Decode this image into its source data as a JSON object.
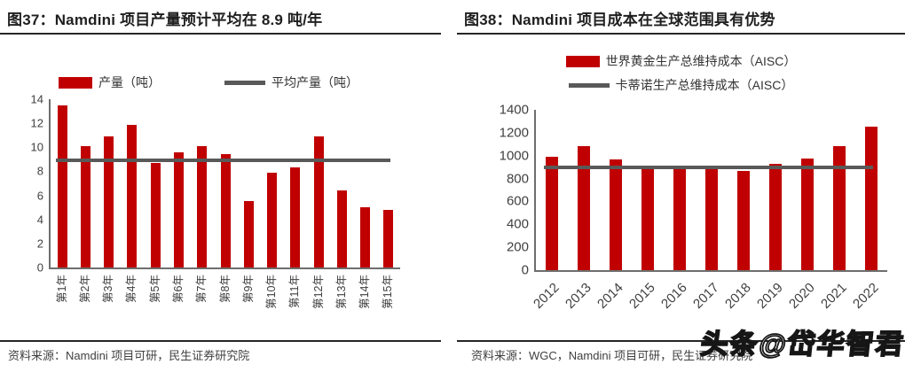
{
  "watermark": "头条@岱华智君",
  "colors": {
    "bar_red": "#c00000",
    "line_gray": "#595959",
    "rule_dark": "#262626",
    "axis_gray": "#6e6e6e",
    "text_gray": "#404040"
  },
  "figures": [
    {
      "title": "图37：Namdini 项目产量预计平均在 8.9 吨/年",
      "source": "资料来源：Namdini 项目可研，民生证券研究院"
    },
    {
      "title": "图38：Namdini 项目成本在全球范围具有优势",
      "source": "资料来源：WGC，Namdini 项目可研，民生证券研究院"
    }
  ],
  "chart_data": [
    {
      "type": "bar",
      "title": "图37：Namdini 项目产量预计平均在 8.9 吨/年",
      "categories": [
        "第1年",
        "第2年",
        "第3年",
        "第4年",
        "第5年",
        "第6年",
        "第7年",
        "第8年",
        "第9年",
        "第10年",
        "第11年",
        "第12年",
        "第13年",
        "第14年",
        "第15年"
      ],
      "series": [
        {
          "name": "产量（吨）",
          "type": "bar",
          "color": "#c00000",
          "values": [
            13.5,
            10.1,
            10.9,
            11.9,
            8.7,
            9.6,
            10.1,
            9.4,
            5.5,
            7.9,
            8.3,
            10.9,
            6.4,
            5.0,
            4.8
          ]
        },
        {
          "name": "平均产量（吨）",
          "type": "line",
          "color": "#595959",
          "value": 8.9
        }
      ],
      "xlabel": "",
      "ylabel": "",
      "ylim": [
        0,
        14
      ],
      "ytick_step": 2,
      "yticks": [
        0,
        2,
        4,
        6,
        8,
        10,
        12,
        14
      ],
      "grid": false,
      "legend_position": "top",
      "xlabel_rotation": 90
    },
    {
      "type": "bar",
      "title": "图38：Namdini 项目成本在全球范围具有优势",
      "categories": [
        "2012",
        "2013",
        "2014",
        "2015",
        "2016",
        "2017",
        "2018",
        "2019",
        "2020",
        "2021",
        "2022"
      ],
      "series": [
        {
          "name": "世界黄金生产总维持成本（AISC）",
          "type": "bar",
          "color": "#c00000",
          "values": [
            990,
            1080,
            965,
            880,
            880,
            880,
            865,
            930,
            975,
            1080,
            1255
          ]
        },
        {
          "name": "卡蒂诺生产总维持成本（AISC）",
          "type": "line",
          "color": "#595959",
          "value": 895
        }
      ],
      "xlabel": "",
      "ylabel": "",
      "ylim": [
        0,
        1400
      ],
      "ytick_step": 200,
      "yticks": [
        0,
        200,
        400,
        600,
        800,
        1000,
        1200,
        1400
      ],
      "grid": false,
      "legend_position": "top",
      "xlabel_rotation": 45
    }
  ]
}
